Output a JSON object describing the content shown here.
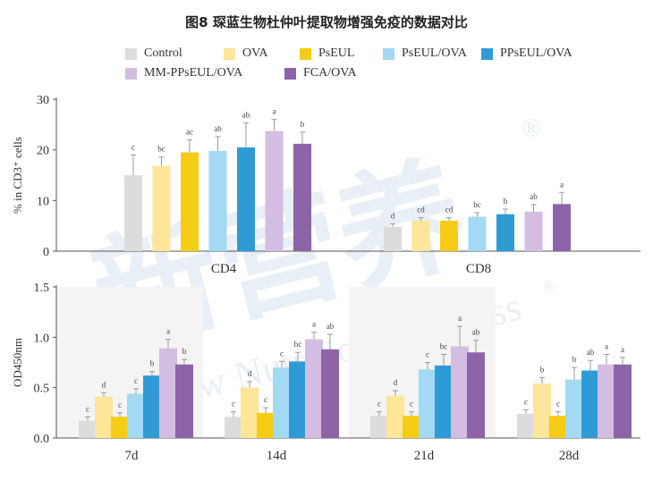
{
  "title": "图8 琛蓝生物杜仲叶提取物增强免疫的数据对比",
  "watermark": {
    "cn": "新营养",
    "en": "New Nutrition Business",
    "mark": "®"
  },
  "legend": [
    {
      "name": "Control",
      "color": "#dcdcdc"
    },
    {
      "name": "OVA",
      "color": "#fde599"
    },
    {
      "name": "PsEUL",
      "color": "#f7cc16"
    },
    {
      "name": "PsEUL/OVA",
      "color": "#a3d9f3"
    },
    {
      "name": "PPsEUL/OVA",
      "color": "#2f9bd6"
    },
    {
      "name": "MM-PPsEUL/OVA",
      "color": "#d3bde0"
    },
    {
      "name": "FCA/OVA",
      "color": "#8d64a8"
    }
  ],
  "chart_data": [
    {
      "type": "bar",
      "ylabel": "% in CD3⁺ cells",
      "ylim": [
        0,
        30
      ],
      "yticks": [
        "0",
        "10",
        "20",
        "30"
      ],
      "categories": [
        "CD4",
        "CD8"
      ],
      "series": [
        {
          "name": "Control",
          "values": [
            15.0,
            4.8
          ],
          "errors": [
            4.0,
            0.6
          ],
          "letters": [
            "c",
            "d"
          ]
        },
        {
          "name": "OVA",
          "values": [
            16.8,
            6.0
          ],
          "errors": [
            1.8,
            0.6
          ],
          "letters": [
            "bc",
            "cd"
          ]
        },
        {
          "name": "PsEUL",
          "values": [
            19.5,
            6.0
          ],
          "errors": [
            2.5,
            0.6
          ],
          "letters": [
            "ac",
            "cd"
          ]
        },
        {
          "name": "PsEUL/OVA",
          "values": [
            19.8,
            6.8
          ],
          "errors": [
            2.8,
            0.8
          ],
          "letters": [
            "ab",
            "bc"
          ]
        },
        {
          "name": "PPsEUL/OVA",
          "values": [
            20.5,
            7.3
          ],
          "errors": [
            4.8,
            1.0
          ],
          "letters": [
            "ab",
            "b"
          ]
        },
        {
          "name": "MM-PPsEUL/OVA",
          "values": [
            23.7,
            7.8
          ],
          "errors": [
            2.3,
            1.4
          ],
          "letters": [
            "a",
            "ab"
          ]
        },
        {
          "name": "FCA/OVA",
          "values": [
            21.2,
            9.3
          ],
          "errors": [
            2.3,
            2.3
          ],
          "letters": [
            "b",
            "a"
          ]
        }
      ]
    },
    {
      "type": "bar",
      "ylabel": "OD450nm",
      "ylim": [
        0,
        1.5
      ],
      "yticks": [
        "0.0",
        "0.5",
        "1.0",
        "1.5"
      ],
      "categories": [
        "7d",
        "14d",
        "21d",
        "28d"
      ],
      "series": [
        {
          "name": "Control",
          "values": [
            0.17,
            0.21,
            0.22,
            0.24
          ],
          "errors": [
            0.04,
            0.05,
            0.04,
            0.04
          ],
          "letters": [
            "c",
            "c",
            "c",
            "c"
          ]
        },
        {
          "name": "OVA",
          "values": [
            0.41,
            0.5,
            0.42,
            0.54
          ],
          "errors": [
            0.04,
            0.06,
            0.05,
            0.06
          ],
          "letters": [
            "d",
            "d",
            "d",
            "b"
          ]
        },
        {
          "name": "PsEUL",
          "values": [
            0.21,
            0.25,
            0.22,
            0.22
          ],
          "errors": [
            0.04,
            0.05,
            0.04,
            0.04
          ],
          "letters": [
            "c",
            "c",
            "c",
            "c"
          ]
        },
        {
          "name": "PsEUL/OVA",
          "values": [
            0.44,
            0.7,
            0.68,
            0.58
          ],
          "errors": [
            0.05,
            0.06,
            0.07,
            0.12
          ],
          "letters": [
            "c",
            "c",
            "c",
            "b"
          ]
        },
        {
          "name": "PPsEUL/OVA",
          "values": [
            0.62,
            0.76,
            0.72,
            0.67
          ],
          "errors": [
            0.04,
            0.09,
            0.11,
            0.1
          ],
          "letters": [
            "b",
            "bc",
            "bc",
            "ab"
          ]
        },
        {
          "name": "MM-PPsEUL/OVA",
          "values": [
            0.89,
            0.98,
            0.91,
            0.73
          ],
          "errors": [
            0.09,
            0.07,
            0.2,
            0.1
          ],
          "letters": [
            "a",
            "a",
            "a",
            "a"
          ]
        },
        {
          "name": "FCA/OVA",
          "values": [
            0.73,
            0.88,
            0.85,
            0.73
          ],
          "errors": [
            0.05,
            0.15,
            0.12,
            0.07
          ],
          "letters": [
            "b",
            "ab",
            "ab",
            "a"
          ]
        }
      ]
    }
  ]
}
